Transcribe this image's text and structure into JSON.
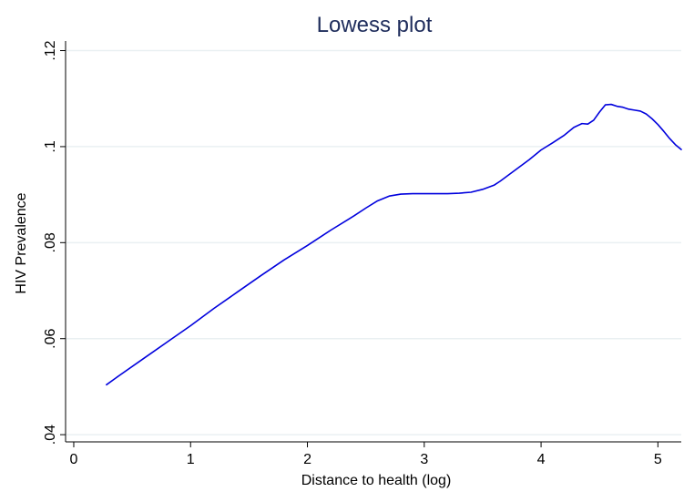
{
  "chart_data": {
    "type": "line",
    "title": "Lowess plot",
    "xlabel": "Distance to health (log)",
    "ylabel": "HIV Prevalence",
    "xlim": [
      -0.07,
      5.2
    ],
    "ylim": [
      0.0385,
      0.122
    ],
    "x_ticks": [
      0,
      1,
      2,
      3,
      4,
      5
    ],
    "y_ticks": [
      0.04,
      0.06,
      0.08,
      0.1,
      0.12
    ],
    "x_tick_labels": [
      "0",
      "1",
      "2",
      "3",
      "4",
      "5"
    ],
    "y_tick_labels": [
      ".04",
      ".06",
      ".08",
      ".1",
      ".12"
    ],
    "grid": true,
    "legend": "none",
    "colors": {
      "title": "#1f2d5c",
      "line": "#0000dd",
      "grid": "#eaf0f2",
      "axis": "#000000",
      "text": "#000000"
    },
    "series": [
      {
        "x": [
          0.28,
          0.4,
          0.6,
          0.8,
          1.0,
          1.2,
          1.4,
          1.6,
          1.8,
          2.0,
          2.2,
          2.4,
          2.5,
          2.6,
          2.7,
          2.8,
          2.9,
          3.0,
          3.1,
          3.2,
          3.3,
          3.4,
          3.5,
          3.6,
          3.65,
          3.7,
          3.8,
          3.9,
          4.0,
          4.1,
          4.2,
          4.28,
          4.35,
          4.4,
          4.45,
          4.5,
          4.55,
          4.6,
          4.65,
          4.7,
          4.75,
          4.8,
          4.85,
          4.9,
          4.95,
          5.0,
          5.05,
          5.1,
          5.15,
          5.2
        ],
        "y": [
          0.0504,
          0.0525,
          0.0559,
          0.0593,
          0.0627,
          0.0663,
          0.0697,
          0.0731,
          0.0764,
          0.0794,
          0.0826,
          0.0856,
          0.0872,
          0.0887,
          0.0897,
          0.0901,
          0.0902,
          0.0902,
          0.0902,
          0.0902,
          0.0903,
          0.0905,
          0.0911,
          0.092,
          0.0928,
          0.0937,
          0.0955,
          0.0973,
          0.0993,
          0.1008,
          0.1024,
          0.104,
          0.1048,
          0.1047,
          0.1055,
          0.1072,
          0.1087,
          0.1088,
          0.1084,
          0.1082,
          0.1078,
          0.1076,
          0.1074,
          0.1068,
          0.1058,
          0.1046,
          0.1032,
          0.1017,
          0.1004,
          0.0994
        ]
      }
    ]
  }
}
